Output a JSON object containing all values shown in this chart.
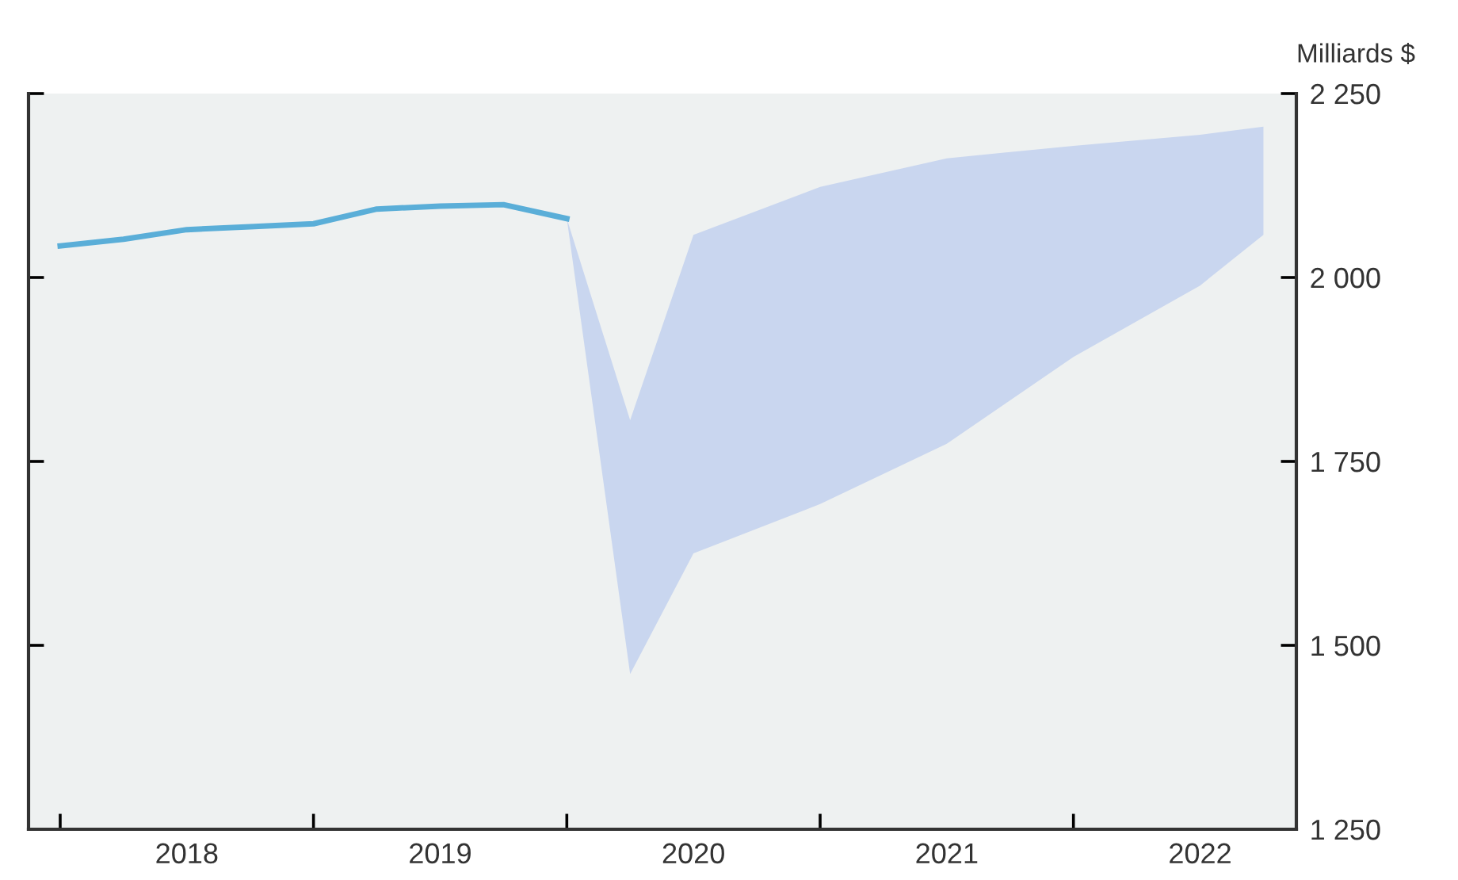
{
  "chart_data": {
    "type": "line",
    "ylabel": "Milliards $",
    "xlim": [
      2017.875,
      2022.88
    ],
    "xticks": [
      {
        "value": 2018,
        "label": null
      },
      {
        "value": 2019,
        "label": null
      },
      {
        "value": 2020,
        "label": null
      },
      {
        "value": 2021,
        "label": null
      },
      {
        "value": 2022,
        "label": null
      },
      {
        "value": 2018.5,
        "label": "2018"
      },
      {
        "value": 2019.5,
        "label": "2019"
      },
      {
        "value": 2020.5,
        "label": "2020"
      },
      {
        "value": 2021.5,
        "label": "2021"
      },
      {
        "value": 2022.5,
        "label": "2022"
      }
    ],
    "ylim": [
      1250,
      2250
    ],
    "yticks": [
      {
        "value": 1250,
        "label": "1 250"
      },
      {
        "value": 1500,
        "label": "1 500"
      },
      {
        "value": 1750,
        "label": "1 750"
      },
      {
        "value": 2000,
        "label": "2 000"
      },
      {
        "value": 2250,
        "label": "2 250"
      }
    ],
    "grid": false,
    "legend": false,
    "series": [
      {
        "color": "#5aaed8",
        "x": [
          2018,
          2018.25,
          2018.5,
          2018.75,
          2019,
          2019.25,
          2019.5,
          2019.75,
          2020
        ],
        "values": [
          2043,
          2052,
          2065,
          2069,
          2073,
          2093,
          2097,
          2099,
          2080
        ]
      },
      {
        "type": "area",
        "color": "#c9d6ef",
        "x": [
          2020,
          2020.25,
          2020.5,
          2021,
          2021.5,
          2022,
          2022.5,
          2022.75
        ],
        "values": [
          null,
          null,
          null,
          null,
          null,
          null,
          null,
          null
        ],
        "lower": [
          2080,
          1461,
          1625,
          1692,
          1774,
          1892,
          1989,
          2058
        ],
        "upper": [
          2080,
          1806,
          2058,
          2123,
          2162,
          2179,
          2194,
          2205
        ]
      }
    ]
  }
}
